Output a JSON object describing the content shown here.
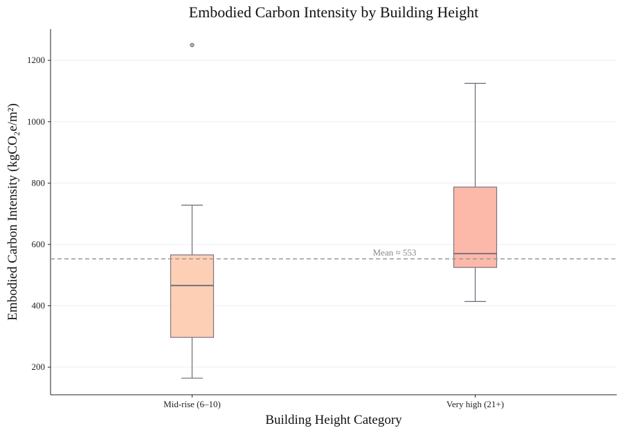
{
  "chart_data": {
    "type": "box",
    "title": "Embodied Carbon Intensity by Building Height",
    "xlabel": "Building Height Category",
    "ylabel": "Embodied Carbon Intensity (kgCO₂e/m²)",
    "ylim": [
      110,
      1302
    ],
    "yticks": [
      200,
      400,
      600,
      800,
      1000,
      1200
    ],
    "grid": "horizontal",
    "categories": [
      "Mid-rise (6–10)",
      "Very high (21+)"
    ],
    "boxes": [
      {
        "name": "Mid-rise (6–10)",
        "whislo": 164,
        "q1": 297,
        "med": 466,
        "q3": 566,
        "whishi": 728,
        "fliers": [
          1250
        ],
        "color": "#fdd0b6"
      },
      {
        "name": "Very high (21+)",
        "whislo": 414,
        "q1": 525,
        "med": 570,
        "q3": 787,
        "whishi": 1125,
        "fliers": [],
        "color": "#fcb8a8"
      }
    ],
    "mean_line": {
      "value": 553,
      "label": "Mean ≈ 553",
      "color": "#999999"
    }
  }
}
